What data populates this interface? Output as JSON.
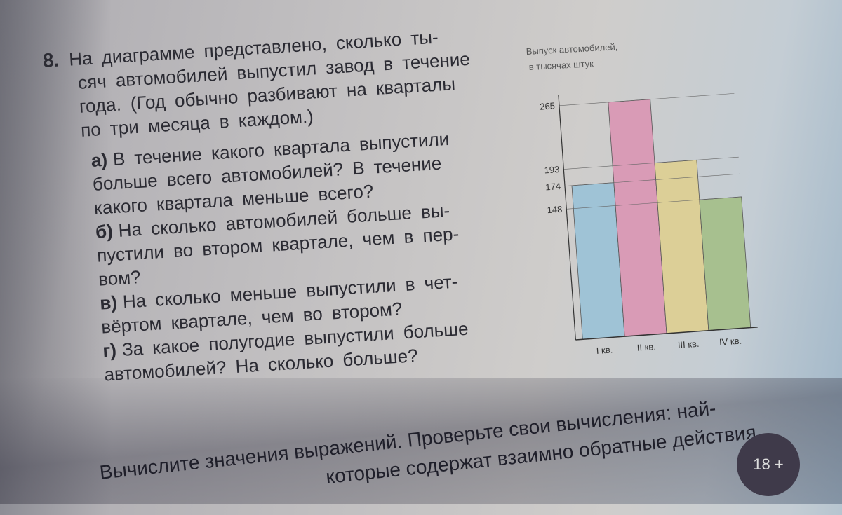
{
  "problem": {
    "number": "8.",
    "lines": [
      "На диаграмме представлено, сколько ты-",
      "сяч автомобилей выпустил завод в течение",
      "года. (Год обычно разбивают на кварталы",
      "по три месяца в каждом.)"
    ],
    "questions": [
      {
        "label": "а)",
        "lines": [
          "В течение какого квартала выпустили",
          "больше всего автомобилей? В течение",
          "какого квартала меньше всего?"
        ]
      },
      {
        "label": "б)",
        "lines": [
          "На сколько автомобилей больше вы-",
          "пустили во втором квартале, чем в пер-",
          "вом?"
        ]
      },
      {
        "label": "в)",
        "lines": [
          "На сколько меньше выпустили в чет-",
          "вёртом квартале, чем во втором?"
        ]
      },
      {
        "label": "г)",
        "lines": [
          "За какое полугодие выпустили больше",
          "автомобилей? На сколько больше?"
        ]
      }
    ]
  },
  "footer": {
    "lines": [
      "Вычислите значения выражений. Проверьте свои вычисления: най-",
      "которые содержат взаимно обратные действия."
    ],
    "page_badge": "18 +"
  },
  "chart_data": {
    "type": "bar",
    "title": "Выпуск автомобилей,",
    "subtitle": "в тысячах штук",
    "categories": [
      "I кв.",
      "II кв.",
      "III кв.",
      "IV кв."
    ],
    "values": [
      174,
      265,
      193,
      148
    ],
    "yticks": [
      148,
      174,
      193,
      265
    ],
    "ylim": [
      0,
      265
    ],
    "grid": true,
    "colors": [
      "#9fc3d6",
      "#d99bb6",
      "#dccf97",
      "#a7c08f"
    ]
  }
}
